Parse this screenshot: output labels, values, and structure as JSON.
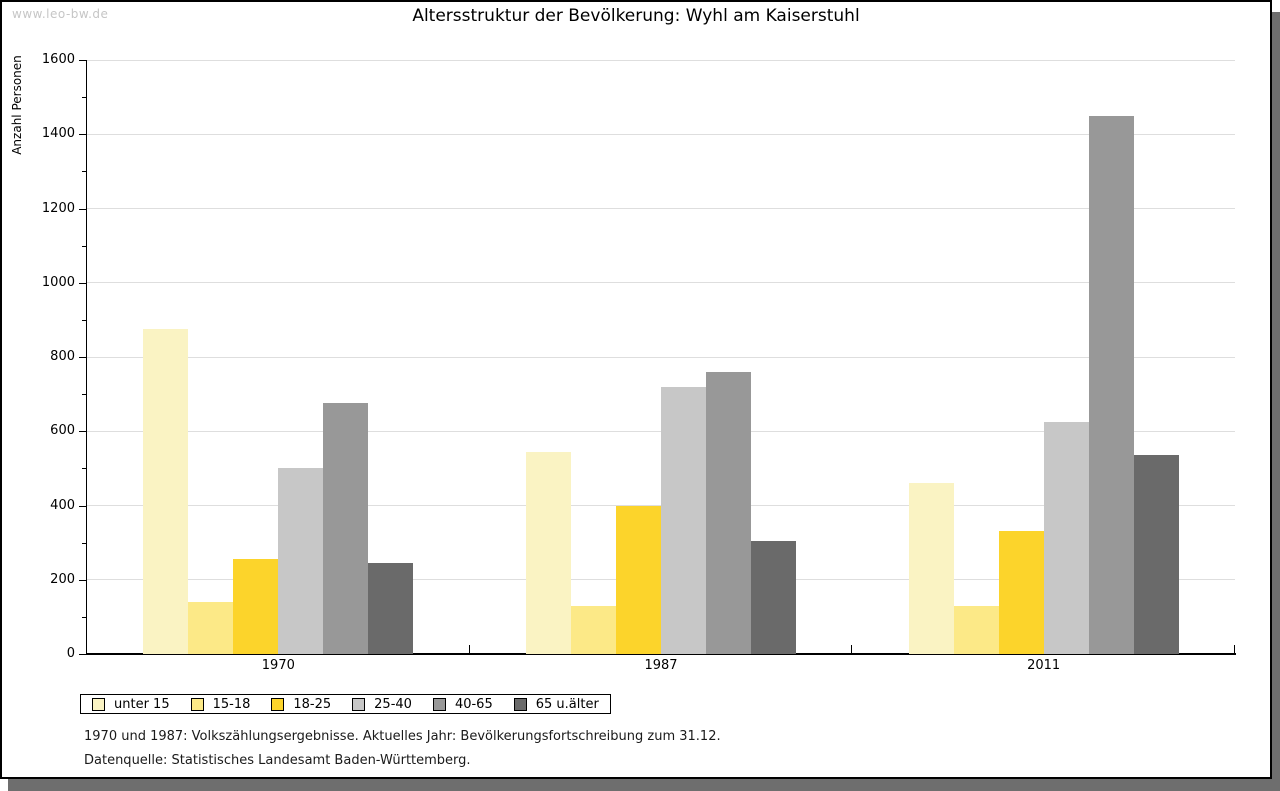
{
  "page": {
    "watermark": "www.leo-bw.de",
    "title": "Altersstruktur der Bevölkerung: Wyhl am Kaiserstuhl"
  },
  "footnotes": [
    "1970 und 1987: Volkszählungsergebnisse. Aktuelles Jahr: Bevölkerungsfortschreibung zum 31.12.",
    "Datenquelle: Statistisches Landesamt Baden-Württemberg."
  ],
  "chart_data": {
    "type": "bar",
    "title": "Altersstruktur der Bevölkerung: Wyhl am Kaiserstuhl",
    "xlabel": "",
    "ylabel": "Anzahl Personen",
    "ylim": [
      0,
      1600
    ],
    "ytick_step": 200,
    "ytick_minor_step": 100,
    "grid": true,
    "legend_position": "bottom-left",
    "categories": [
      "1970",
      "1987",
      "2011"
    ],
    "series": [
      {
        "name": "unter 15",
        "color": "#FAF3C3",
        "values": [
          875,
          545,
          460
        ]
      },
      {
        "name": "15-18",
        "color": "#FCE987",
        "values": [
          140,
          130,
          130
        ]
      },
      {
        "name": "18-25",
        "color": "#FCD42B",
        "values": [
          255,
          400,
          330
        ]
      },
      {
        "name": "25-40",
        "color": "#C7C7C7",
        "values": [
          500,
          720,
          625
        ]
      },
      {
        "name": "40-65",
        "color": "#989898",
        "values": [
          675,
          760,
          1450
        ]
      },
      {
        "name": "65 u.älter",
        "color": "#6A6A6A",
        "values": [
          245,
          305,
          535
        ]
      }
    ]
  }
}
